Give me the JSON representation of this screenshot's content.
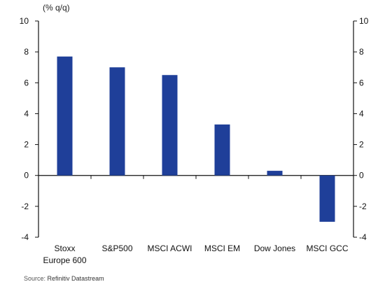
{
  "chart_data": {
    "type": "bar",
    "unit_label": "(% q/q)",
    "categories": [
      "Stoxx Europe 600",
      "S&P500",
      "MSCI ACWI",
      "MSCI EM",
      "Dow Jones",
      "MSCI GCC"
    ],
    "category_lines": [
      [
        "Stoxx",
        "Europe 600"
      ],
      [
        "S&P500"
      ],
      [
        "MSCI ACWI"
      ],
      [
        "MSCI EM"
      ],
      [
        "Dow Jones"
      ],
      [
        "MSCI GCC"
      ]
    ],
    "values": [
      7.7,
      7.0,
      6.5,
      3.3,
      0.3,
      -3.0
    ],
    "ylim": [
      -4,
      10
    ],
    "yticks": [
      -4,
      -2,
      0,
      2,
      4,
      6,
      8,
      10
    ],
    "ytick_labels": [
      "-4",
      "-2",
      "0",
      "2",
      "4",
      "6",
      "8",
      "10"
    ],
    "grid": false,
    "bar_color": "#1f3f99",
    "source_label": "Source:",
    "source_text": "Refinitiv Datastream"
  }
}
